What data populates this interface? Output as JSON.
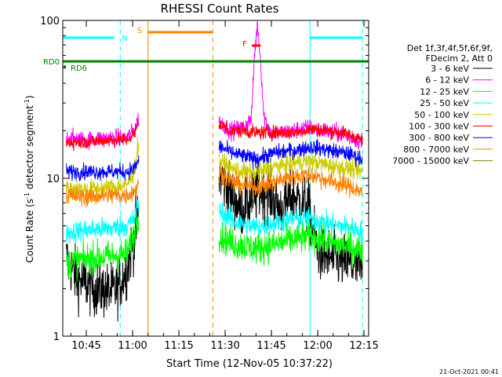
{
  "chart_data": {
    "type": "line",
    "title": "RHESSI Count Rates",
    "xlabel": "Start Time (12-Nov-05 10:37:22)",
    "ylabel_main": "Count Rate (s",
    "ylabel_sup1": "-1",
    "ylabel_mid": " detector segment",
    "ylabel_sup2": "-1",
    "ylabel_end": ")",
    "y_scale": "log",
    "ylim": [
      1,
      100
    ],
    "xlim": [
      "10:37:22",
      "12:16:30"
    ],
    "x_ticks": [
      "10:45",
      "11:00",
      "11:15",
      "11:30",
      "11:45",
      "12:00",
      "12:15"
    ],
    "y_ticks": [
      "1",
      "10",
      "100"
    ],
    "legend_header": [
      "Det 1f,3f,4f,5f,6f,9f,",
      "FDecim 2, Att 0"
    ],
    "legend_position": "right",
    "series": [
      {
        "name": "3 - 6 keV",
        "color": "#000000",
        "segments": [
          {
            "x": [
              "10:38:30",
              "10:42:00",
              "10:48:00",
              "10:54:00",
              "10:58:00",
              "11:00:30",
              "11:02:00"
            ],
            "y": [
              3.1,
              2.3,
              2.0,
              1.9,
              2.6,
              4.2,
              6.0
            ]
          },
          {
            "x": [
              "11:28:00",
              "11:31:00",
              "11:35:00",
              "11:38:00",
              "11:41:00",
              "11:44:00",
              "11:48:00",
              "11:52:00",
              "11:57:00",
              "12:00:00",
              "12:05:00",
              "12:10:00",
              "12:14:30"
            ],
            "y": [
              10.5,
              8.6,
              6.3,
              7.2,
              8.2,
              8.3,
              6.3,
              7.8,
              6.5,
              3.4,
              3.1,
              2.9,
              2.6
            ]
          }
        ]
      },
      {
        "name": "6 - 12 keV",
        "color": "#ff00ff",
        "segments": [
          {
            "x": [
              "10:38:30",
              "10:45:00",
              "10:52:00",
              "10:58:00",
              "11:00:30",
              "11:02:00"
            ],
            "y": [
              18,
              17.5,
              18,
              18,
              20,
              24
            ]
          },
          {
            "x": [
              "11:28:00",
              "11:32:00",
              "11:36:00",
              "11:38:30",
              "11:39:30",
              "11:40:30",
              "11:41:30",
              "11:42:30",
              "11:45:00",
              "11:52:00",
              "11:57:00",
              "12:02:00",
              "12:08:00",
              "12:14:30"
            ],
            "y": [
              23,
              20,
              21,
              24,
              60,
              95,
              55,
              25,
              19,
              20,
              21,
              20,
              19,
              17
            ]
          }
        ]
      },
      {
        "name": "12 - 25 keV",
        "color": "#00ff00",
        "segments": [
          {
            "x": [
              "10:38:30",
              "10:45:00",
              "10:52:00",
              "10:58:00",
              "11:00:30",
              "11:02:00"
            ],
            "y": [
              2.9,
              3.1,
              3.2,
              3.3,
              4.3,
              6.0
            ]
          },
          {
            "x": [
              "11:28:00",
              "11:34:00",
              "11:40:00",
              "11:46:00",
              "11:52:00",
              "11:58:00",
              "12:04:00",
              "12:10:00",
              "12:14:30"
            ],
            "y": [
              4.3,
              3.8,
              3.6,
              3.8,
              4.1,
              4.3,
              3.9,
              3.7,
              3.5
            ]
          }
        ]
      },
      {
        "name": "25 - 50 keV",
        "color": "#00ffff",
        "segments": [
          {
            "x": [
              "10:38:30",
              "10:45:00",
              "10:52:00",
              "10:58:00",
              "11:00:30",
              "11:02:00"
            ],
            "y": [
              4.5,
              4.7,
              4.8,
              5.0,
              5.5,
              7.0
            ]
          },
          {
            "x": [
              "11:28:00",
              "11:34:00",
              "11:40:00",
              "11:46:00",
              "11:52:00",
              "11:58:00",
              "12:04:00",
              "12:10:00",
              "12:14:30"
            ],
            "y": [
              6.2,
              5.2,
              4.9,
              5.2,
              5.5,
              5.6,
              5.1,
              4.9,
              4.6
            ]
          }
        ]
      },
      {
        "name": "50 - 100 keV",
        "color": "#cccc00",
        "segments": [
          {
            "x": [
              "10:38:30",
              "10:45:00",
              "10:52:00",
              "10:58:00",
              "11:00:30",
              "11:02:00"
            ],
            "y": [
              8.6,
              8.5,
              8.7,
              9.0,
              11,
              17
            ]
          },
          {
            "x": [
              "11:28:00",
              "11:32:00",
              "11:36:00",
              "11:40:00",
              "11:46:00",
              "11:52:00",
              "11:58:00",
              "12:04:00",
              "12:10:00",
              "12:14:30"
            ],
            "y": [
              13,
              11.5,
              11,
              10.8,
              11.8,
              12.5,
              12.8,
              12.0,
              11.5,
              11.0
            ]
          }
        ]
      },
      {
        "name": "100 - 300 keV",
        "color": "#ff0000",
        "segments": [
          {
            "x": [
              "10:38:30",
              "10:45:00",
              "10:52:00",
              "10:58:00",
              "11:00:30",
              "11:02:00"
            ],
            "y": [
              17,
              17,
              17.5,
              17.5,
              19,
              22
            ]
          },
          {
            "x": [
              "11:28:00",
              "11:32:00",
              "11:36:00",
              "11:40:00",
              "11:46:00",
              "11:52:00",
              "11:58:00",
              "12:04:00",
              "12:10:00",
              "12:14:30"
            ],
            "y": [
              22,
              20,
              20,
              19.5,
              19.5,
              19.5,
              20.5,
              20,
              19,
              17.5
            ]
          }
        ]
      },
      {
        "name": "300 - 800 keV",
        "color": "#0000ff",
        "segments": [
          {
            "x": [
              "10:38:30",
              "10:45:00",
              "10:52:00",
              "10:58:00",
              "11:00:30",
              "11:02:00"
            ],
            "y": [
              11,
              11,
              11,
              11,
              11.5,
              13
            ]
          },
          {
            "x": [
              "11:28:00",
              "11:32:00",
              "11:36:00",
              "11:40:00",
              "11:46:00",
              "11:52:00",
              "11:58:00",
              "12:04:00",
              "12:10:00",
              "12:14:30"
            ],
            "y": [
              16,
              14.5,
              13.8,
              13.2,
              14.5,
              15,
              15.8,
              15,
              14.3,
              13.2
            ]
          }
        ]
      },
      {
        "name": "800 - 7000 keV",
        "color": "#ff8000",
        "segments": [
          {
            "x": [
              "10:38:30",
              "10:45:00",
              "10:52:00",
              "10:58:00",
              "11:00:30",
              "11:02:00"
            ],
            "y": [
              7.8,
              7.6,
              7.8,
              7.8,
              8.3,
              9.0
            ]
          },
          {
            "x": [
              "11:28:00",
              "11:32:00",
              "11:36:00",
              "11:40:00",
              "11:46:00",
              "11:52:00",
              "11:58:00",
              "12:04:00",
              "12:10:00",
              "12:14:30"
            ],
            "y": [
              11,
              9.5,
              9.0,
              8.8,
              9.5,
              10.3,
              10.5,
              9.6,
              8.9,
              8.2
            ]
          }
        ]
      },
      {
        "name": "7000 - 15000 keV",
        "color": "#808000",
        "segments": []
      }
    ],
    "attenuator": [
      {
        "label": "RD0",
        "color": "#008000",
        "y_level": 55
      },
      {
        "label": "RD6",
        "color": "#008000"
      }
    ],
    "intervals": [
      {
        "label": "N",
        "color": "#00ffff",
        "x": [
          "10:37:22",
          "10:56:00"
        ]
      },
      {
        "label": "S",
        "color": "#ff8000",
        "x": [
          "11:05:00",
          "11:26:00"
        ]
      },
      {
        "label": "F",
        "color": "#ff0000",
        "x": [
          "11:38:40",
          "11:41:30"
        ]
      },
      {
        "label": "",
        "color": "#00ffff",
        "x": [
          "11:57:30",
          "12:14:30"
        ]
      }
    ],
    "footer": "21-Oct-2021 00:41"
  }
}
